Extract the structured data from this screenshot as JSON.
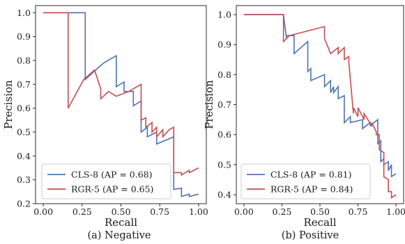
{
  "chart_data": [
    {
      "type": "line",
      "caption": "(a) Negative",
      "xlabel": "Recall",
      "ylabel": "Precision",
      "xlim": [
        -0.05,
        1.05
      ],
      "ylim": [
        0.2,
        1.03
      ],
      "xticks": [
        "0.00",
        "0.25",
        "0.50",
        "0.75",
        "1.00"
      ],
      "yticks": [
        "0.2",
        "0.3",
        "0.4",
        "0.5",
        "0.6",
        "0.7",
        "0.8",
        "0.9",
        "1.0"
      ],
      "grid": false,
      "legend_position": "lower-left",
      "series": [
        {
          "name": "CLS-8 (AP = 0.68)",
          "color": "#4c72b0",
          "x": [
            0.0,
            0.27,
            0.27,
            0.32,
            0.39,
            0.47,
            0.47,
            0.52,
            0.52,
            0.58,
            0.58,
            0.63,
            0.63,
            0.67,
            0.67,
            0.73,
            0.73,
            0.84,
            0.84,
            0.89,
            0.89,
            0.94,
            0.94,
            1.0
          ],
          "y": [
            1.0,
            1.0,
            0.72,
            0.75,
            0.79,
            0.82,
            0.69,
            0.71,
            0.67,
            0.67,
            0.61,
            0.63,
            0.5,
            0.52,
            0.48,
            0.5,
            0.45,
            0.48,
            0.26,
            0.265,
            0.23,
            0.24,
            0.23,
            0.24
          ]
        },
        {
          "name": "RGR-5 (AP = 0.65)",
          "color": "#c44e52",
          "x": [
            0.0,
            0.16,
            0.16,
            0.26,
            0.33,
            0.37,
            0.37,
            0.42,
            0.47,
            0.55,
            0.63,
            0.63,
            0.66,
            0.66,
            0.7,
            0.7,
            0.73,
            0.73,
            0.77,
            0.77,
            0.81,
            0.84,
            0.84,
            0.89,
            0.89,
            0.94,
            0.94,
            1.0
          ],
          "y": [
            1.0,
            1.0,
            0.6,
            0.72,
            0.76,
            0.68,
            0.64,
            0.67,
            0.65,
            0.67,
            0.7,
            0.55,
            0.56,
            0.52,
            0.54,
            0.5,
            0.52,
            0.48,
            0.51,
            0.48,
            0.51,
            0.52,
            0.33,
            0.33,
            0.32,
            0.34,
            0.33,
            0.35
          ]
        }
      ]
    },
    {
      "type": "line",
      "caption": "(b) Positive",
      "xlabel": "Recall",
      "ylabel": "Precision",
      "xlim": [
        -0.05,
        1.05
      ],
      "ylim": [
        0.37,
        1.03
      ],
      "xticks": [
        "0.00",
        "0.25",
        "0.50",
        "0.75",
        "1.00"
      ],
      "yticks": [
        "0.4",
        "0.5",
        "0.6",
        "0.7",
        "0.8",
        "0.9",
        "1.0"
      ],
      "grid": false,
      "legend_position": "lower-left",
      "series": [
        {
          "name": "CLS-8 (AP = 0.81)",
          "color": "#4c72b0",
          "x": [
            0.0,
            0.26,
            0.28,
            0.28,
            0.33,
            0.33,
            0.42,
            0.42,
            0.44,
            0.44,
            0.53,
            0.53,
            0.57,
            0.57,
            0.59,
            0.59,
            0.62,
            0.62,
            0.66,
            0.66,
            0.7,
            0.7,
            0.78,
            0.78,
            0.83,
            0.83,
            0.88,
            0.88,
            0.9,
            0.9,
            0.92,
            0.92,
            0.95,
            0.95,
            0.97,
            0.97,
            1.0
          ],
          "y": [
            1.0,
            1.0,
            0.92,
            0.93,
            0.93,
            0.87,
            0.91,
            0.81,
            0.82,
            0.78,
            0.8,
            0.76,
            0.78,
            0.74,
            0.76,
            0.74,
            0.76,
            0.72,
            0.73,
            0.64,
            0.66,
            0.64,
            0.65,
            0.62,
            0.64,
            0.63,
            0.65,
            0.57,
            0.58,
            0.51,
            0.52,
            0.5,
            0.51,
            0.48,
            0.5,
            0.46,
            0.47
          ]
        },
        {
          "name": "RGR-5 (AP = 0.84)",
          "color": "#c44e52",
          "x": [
            0.0,
            0.26,
            0.26,
            0.3,
            0.53,
            0.53,
            0.57,
            0.62,
            0.62,
            0.66,
            0.66,
            0.69,
            0.69,
            0.72,
            0.72,
            0.75,
            0.75,
            0.79,
            0.79,
            0.84,
            0.84,
            0.87,
            0.87,
            0.89,
            0.89,
            0.92,
            0.92,
            0.95,
            0.95,
            0.97,
            0.97,
            1.0
          ],
          "y": [
            1.0,
            1.0,
            0.91,
            0.93,
            0.96,
            0.92,
            0.87,
            0.89,
            0.87,
            0.89,
            0.85,
            0.86,
            0.84,
            0.67,
            0.69,
            0.66,
            0.69,
            0.65,
            0.67,
            0.63,
            0.64,
            0.61,
            0.6,
            0.6,
            0.55,
            0.54,
            0.46,
            0.45,
            0.41,
            0.41,
            0.39,
            0.4
          ]
        }
      ]
    }
  ]
}
